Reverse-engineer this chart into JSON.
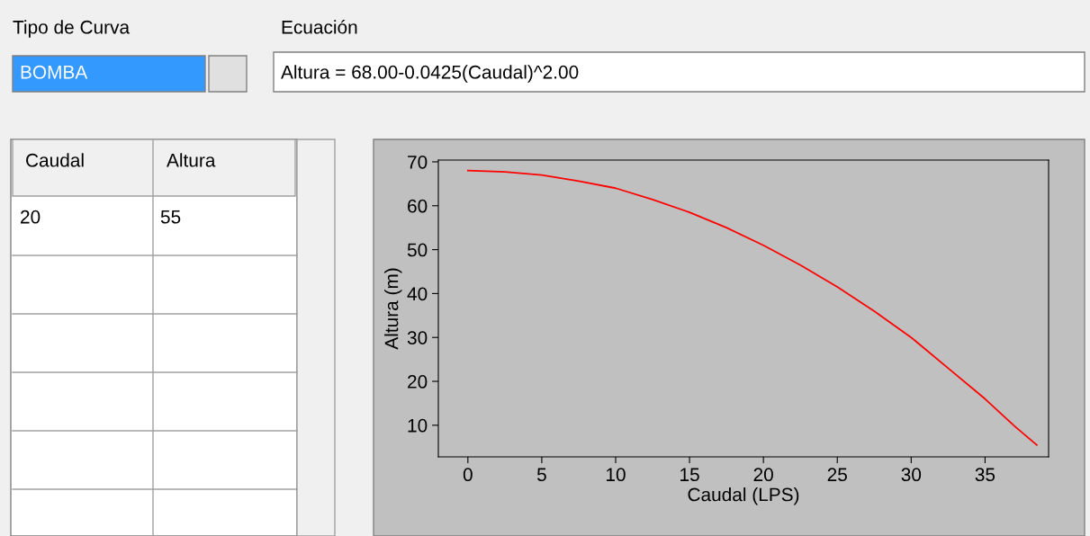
{
  "chart_data": {
    "type": "line",
    "xlabel": "Caudal (LPS)",
    "ylabel": "Altura (m)",
    "x": [
      0,
      2.5,
      5,
      7.5,
      10,
      12.5,
      15,
      17.5,
      20,
      22.5,
      25,
      27.5,
      30,
      32.5,
      35,
      37,
      38.5
    ],
    "series": [
      {
        "color": "#ff0000",
        "values": [
          68,
          67.7,
          67,
          65.6,
          64,
          61.4,
          58.5,
          55,
          51,
          46.5,
          41.5,
          36,
          30,
          23,
          16,
          9.8,
          5.5
        ]
      }
    ],
    "xlim": [
      -2,
      39.3
    ],
    "ylim": [
      2.8,
      70.4
    ],
    "xticks": [
      0,
      5,
      10,
      15,
      20,
      25,
      30,
      35
    ],
    "yticks": [
      10,
      20,
      30,
      40,
      50,
      60,
      70
    ],
    "grid": false,
    "legend": false,
    "marker": "none",
    "line_style": "solid",
    "annotations": [
      "Tipo de Curva",
      "Ecuación",
      "BOMBA",
      "Altura = 68.00-0.0425(Caudal)^2.00",
      "Caudal",
      "Altura",
      "20",
      "55"
    ]
  }
}
